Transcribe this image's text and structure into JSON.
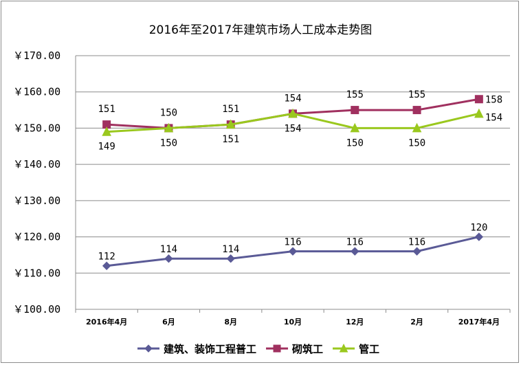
{
  "chart_data": {
    "type": "line",
    "title": "2016年至2017年建筑市场人工成本走势图",
    "categories": [
      "2016年4月",
      "6月",
      "8月",
      "10月",
      "12月",
      "2月",
      "2017年4月"
    ],
    "ylim": [
      100,
      170
    ],
    "yticks": [
      100,
      110,
      120,
      130,
      140,
      150,
      160,
      170
    ],
    "ytick_labels": [
      "￥100.00",
      "￥110.00",
      "￥120.00",
      "￥130.00",
      "￥140.00",
      "￥150.00",
      "￥160.00",
      "￥170.00"
    ],
    "grid": true,
    "legend_position": "bottom",
    "series": [
      {
        "name": "建筑、装饰工程普工",
        "values": [
          112,
          114,
          114,
          116,
          116,
          116,
          120
        ],
        "color": "#5a5a96",
        "marker": "diamond"
      },
      {
        "name": "砌筑工",
        "values": [
          151,
          150,
          151,
          154,
          155,
          155,
          158
        ],
        "color": "#a0305f",
        "marker": "square"
      },
      {
        "name": "管工",
        "values": [
          149,
          150,
          151,
          154,
          150,
          150,
          154
        ],
        "color": "#9ac81e",
        "marker": "triangle"
      }
    ]
  }
}
